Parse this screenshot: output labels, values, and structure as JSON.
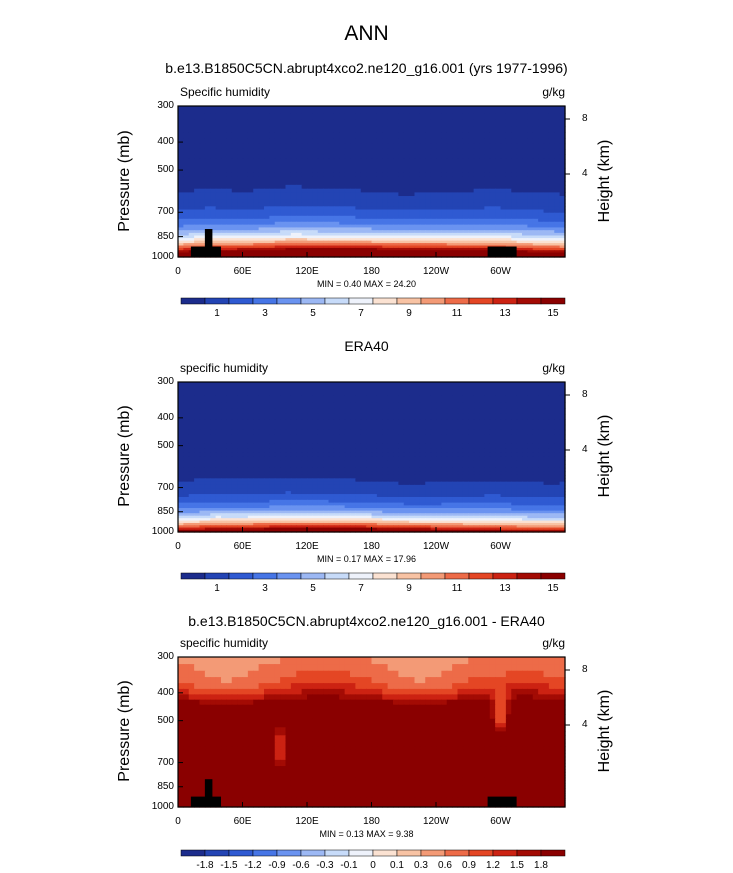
{
  "figure": {
    "title": "ANN"
  },
  "colors": {
    "scale_15": [
      "#1c2c8c",
      "#2344b4",
      "#2f5ad2",
      "#4675e6",
      "#6a93f0",
      "#9cb8f4",
      "#c7dbf9",
      "#eef2fb",
      "#fbe2d2",
      "#f8c3a4",
      "#f39a76",
      "#ed6b48",
      "#e44624",
      "#cc2212",
      "#a30b04",
      "#8a0000"
    ],
    "scale_diff": [
      "#1c2c8c",
      "#2344b4",
      "#2f5ad2",
      "#4675e6",
      "#6a93f0",
      "#9cb8f4",
      "#c7dbf9",
      "#eef2fb",
      "#fbe2d2",
      "#f8c3a4",
      "#f39a76",
      "#ed6b48",
      "#e44624",
      "#cc2212",
      "#a30b04",
      "#8a0000"
    ],
    "land": "#000000"
  },
  "chart_data": [
    {
      "type": "heatmap",
      "panel_title": "b.e13.B1850C5CN.abrupt4xco2.ne120_g16.001 (yrs 1977-1996)",
      "variable": "Specific humidity",
      "units": "g/kg",
      "ylabel": "Pressure (mb)",
      "ylabel_right": "Height (km)",
      "y_ticks": [
        "300",
        "400",
        "500",
        "700",
        "850",
        "1000"
      ],
      "y_tick_values": [
        300,
        400,
        500,
        700,
        850,
        1000
      ],
      "y_right_ticks": [
        "8",
        "4"
      ],
      "x_ticks": [
        "0",
        "60E",
        "120E",
        "180",
        "120W",
        "60W"
      ],
      "x_tick_values": [
        0,
        60,
        120,
        180,
        240,
        300
      ],
      "xlim": [
        0,
        360
      ],
      "ylim": [
        1000,
        300
      ],
      "min_max": "MIN =   0.40   MAX =   24.20",
      "colorbar_labels": [
        "1",
        "3",
        "5",
        "7",
        "9",
        "11",
        "13",
        "15"
      ],
      "colorbar_levels": [
        0,
        1,
        2,
        3,
        4,
        5,
        6,
        7,
        8,
        9,
        10,
        11,
        12,
        13,
        14,
        15,
        16
      ],
      "field": {
        "base": 21.5,
        "decay": 0.0076,
        "amp": 0.9,
        "wave": 0.65,
        "peaks": [
          [
            28,
            0.85
          ],
          [
            295,
            0.75
          ],
          [
            105,
            0.9
          ]
        ]
      },
      "topography": [
        [
          12,
          40,
          920
        ],
        [
          25,
          32,
          800
        ],
        [
          288,
          315,
          920
        ]
      ]
    },
    {
      "type": "heatmap",
      "panel_title": "ERA40",
      "variable": "specific humidity",
      "units": "g/kg",
      "ylabel": "Pressure (mb)",
      "ylabel_right": "Height (km)",
      "y_ticks": [
        "300",
        "400",
        "500",
        "700",
        "850",
        "1000"
      ],
      "y_tick_values": [
        300,
        400,
        500,
        700,
        850,
        1000
      ],
      "y_right_ticks": [
        "8",
        "4"
      ],
      "x_ticks": [
        "0",
        "60E",
        "120E",
        "180",
        "120W",
        "60W"
      ],
      "x_tick_values": [
        0,
        60,
        120,
        180,
        240,
        300
      ],
      "xlim": [
        0,
        360
      ],
      "ylim": [
        1000,
        300
      ],
      "min_max": "MIN =   0.17   MAX =   17.96",
      "colorbar_labels": [
        "1",
        "3",
        "5",
        "7",
        "9",
        "11",
        "13",
        "15"
      ],
      "colorbar_levels": [
        0,
        1,
        2,
        3,
        4,
        5,
        6,
        7,
        8,
        9,
        10,
        11,
        12,
        13,
        14,
        15,
        16
      ],
      "field": {
        "base": 17.5,
        "decay": 0.0085,
        "amp": 0.7,
        "wave": 0.85,
        "peaks": [
          [
            32,
            1.1
          ],
          [
            295,
            0.9
          ],
          [
            100,
            0.6
          ]
        ]
      },
      "topography": []
    },
    {
      "type": "heatmap",
      "panel_title": "b.e13.B1850C5CN.abrupt4xco2.ne120_g16.001 - ERA40",
      "variable": "specific humidity",
      "units": "g/kg",
      "ylabel": "Pressure (mb)",
      "ylabel_right": "Height (km)",
      "y_ticks": [
        "300",
        "400",
        "500",
        "700",
        "850",
        "1000"
      ],
      "y_tick_values": [
        300,
        400,
        500,
        700,
        850,
        1000
      ],
      "y_right_ticks": [
        "8",
        "4"
      ],
      "x_ticks": [
        "0",
        "60E",
        "120E",
        "180",
        "120W",
        "60W"
      ],
      "x_tick_values": [
        0,
        60,
        120,
        180,
        240,
        300
      ],
      "xlim": [
        0,
        360
      ],
      "ylim": [
        1000,
        300
      ],
      "min_max": "MIN =   0.13   MAX =   9.38",
      "colorbar_labels": [
        "-1.8",
        "-1.5",
        "-1.2",
        "-0.9",
        "-0.6",
        "-0.3",
        "-0.1",
        "0",
        "0.1",
        "0.3",
        "0.6",
        "0.9",
        "1.2",
        "1.5",
        "1.8"
      ],
      "colorbar_levels": [
        -100,
        -1.8,
        -1.5,
        -1.2,
        -0.9,
        -0.6,
        -0.3,
        -0.1,
        0,
        0.1,
        0.3,
        0.6,
        0.9,
        1.2,
        1.5,
        1.8,
        100
      ],
      "field": {
        "diff": true
      },
      "topography": [
        [
          12,
          40,
          920
        ],
        [
          25,
          32,
          800
        ],
        [
          288,
          315,
          920
        ]
      ]
    }
  ]
}
